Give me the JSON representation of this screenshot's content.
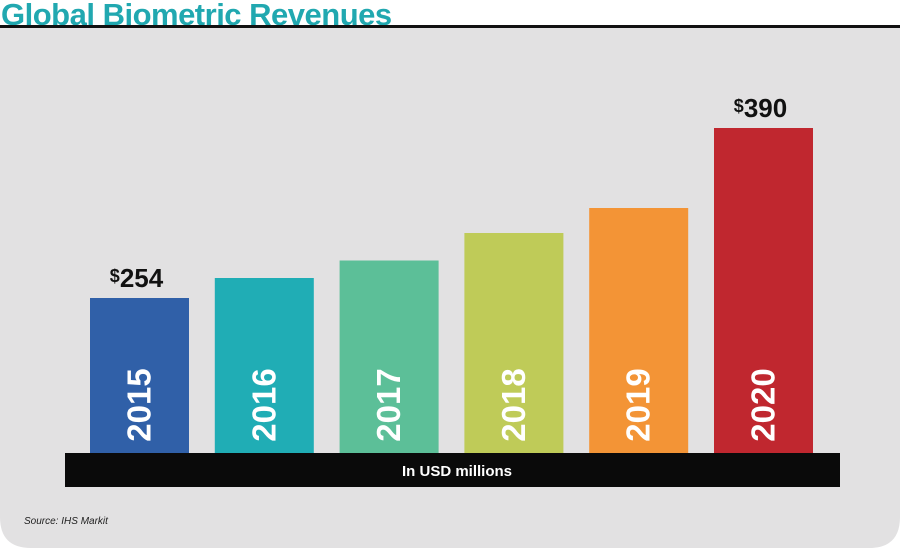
{
  "chart_data": {
    "type": "bar",
    "title": "Global Biometric Revenues",
    "categories": [
      "2015",
      "2016",
      "2017",
      "2018",
      "2019",
      "2020"
    ],
    "values": [
      254,
      270,
      284,
      306,
      326,
      390
    ],
    "colors": [
      "#3060a8",
      "#20adb5",
      "#5cbf98",
      "#bfcb58",
      "#f39436",
      "#c0272f"
    ],
    "data_labels": [
      {
        "category": "2015",
        "text": "$254"
      },
      {
        "category": "2020",
        "text": "$390"
      }
    ],
    "unit_label": "In USD millions",
    "source": "Source: IHS Markit",
    "ylim": [
      0,
      400
    ],
    "grid": false,
    "background_color": "#e2e1e2",
    "frame_color": "#111111"
  }
}
